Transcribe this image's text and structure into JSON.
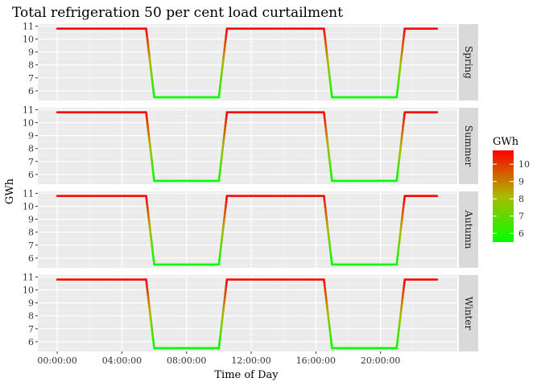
{
  "chart_data": {
    "type": "line",
    "title": "Total refrigeration 50 per cent load curtailment",
    "xlabel": "Time of Day",
    "ylabel": "GWh",
    "facets": [
      "Spring",
      "Summer",
      "Autumn",
      "Winter"
    ],
    "x_ticks": [
      "00:00:00",
      "04:00:00",
      "08:00:00",
      "12:00:00",
      "16:00:00",
      "20:00:00"
    ],
    "x_tick_hours": [
      0,
      4,
      8,
      12,
      16,
      20
    ],
    "xlim_hours": [
      -1.2,
      24.75
    ],
    "y_ticks": [
      6,
      7,
      8,
      9,
      10,
      11
    ],
    "ylim": [
      5.25,
      11.15
    ],
    "grid": true,
    "color_scale": {
      "low": "#00ff00",
      "high": "#ff0000",
      "min": 5.5,
      "max": 10.8
    },
    "series_points": {
      "hours": [
        0,
        5.5,
        6.0,
        10.0,
        10.5,
        16.5,
        17.0,
        21.0,
        21.5,
        23.5
      ],
      "values": [
        10.8,
        10.8,
        5.5,
        5.5,
        10.8,
        10.8,
        5.5,
        5.5,
        10.8,
        10.8
      ]
    },
    "legend": {
      "title": "GWh",
      "ticks": [
        6,
        7,
        8,
        9,
        10
      ],
      "position": "right"
    }
  }
}
